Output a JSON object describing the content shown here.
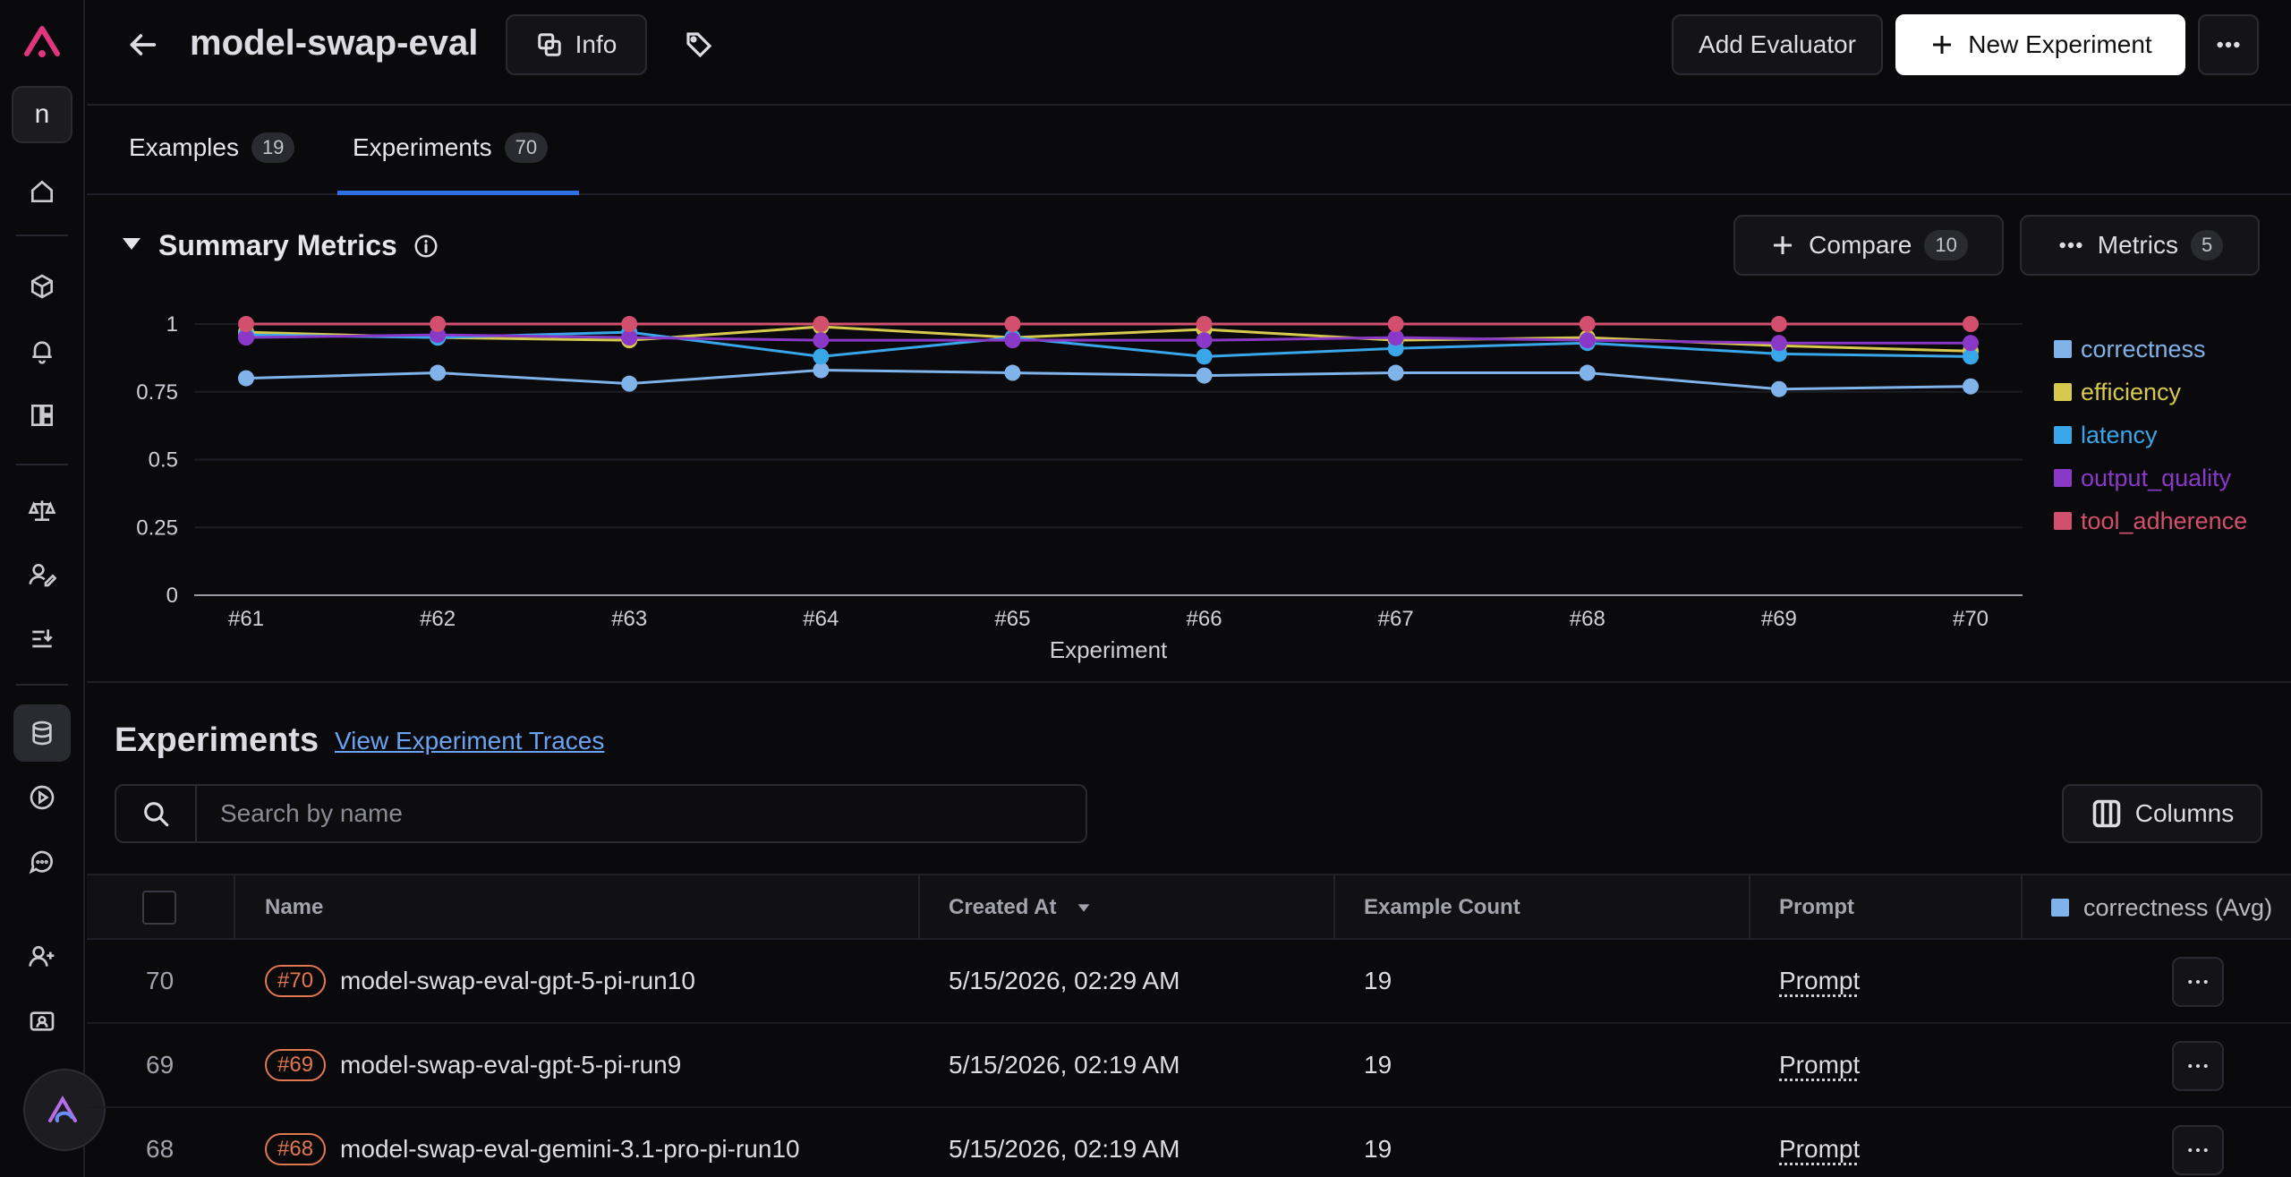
{
  "header": {
    "title": "model-swap-eval",
    "info_label": "Info",
    "add_evaluator_label": "Add Evaluator",
    "new_experiment_label": "New Experiment"
  },
  "rail": {
    "project_initial": "n"
  },
  "tabs": [
    {
      "label": "Examples",
      "count": "19"
    },
    {
      "label": "Experiments",
      "count": "70"
    }
  ],
  "summary": {
    "title": "Summary Metrics",
    "compare_label": "Compare",
    "compare_count": "10",
    "metrics_label": "Metrics",
    "metrics_count": "5"
  },
  "chart_data": {
    "type": "line",
    "xlabel": "Experiment",
    "categories": [
      "#61",
      "#62",
      "#63",
      "#64",
      "#65",
      "#66",
      "#67",
      "#68",
      "#69",
      "#70"
    ],
    "ylim": [
      0,
      1
    ],
    "yticks": [
      "0",
      "0.25",
      "0.5",
      "0.75",
      "1"
    ],
    "grid": true,
    "legend_position": "right",
    "series": [
      {
        "name": "correctness",
        "color": "#7fb3ea",
        "values": [
          0.8,
          0.82,
          0.78,
          0.83,
          0.82,
          0.81,
          0.82,
          0.82,
          0.76,
          0.77
        ]
      },
      {
        "name": "efficiency",
        "color": "#d7c94b",
        "values": [
          0.97,
          0.95,
          0.94,
          0.99,
          0.95,
          0.98,
          0.94,
          0.95,
          0.92,
          0.9
        ]
      },
      {
        "name": "latency",
        "color": "#3aa6ea",
        "values": [
          0.96,
          0.95,
          0.97,
          0.88,
          0.95,
          0.88,
          0.91,
          0.93,
          0.89,
          0.88
        ]
      },
      {
        "name": "output_quality",
        "color": "#8a38c8",
        "values": [
          0.95,
          0.96,
          0.95,
          0.94,
          0.94,
          0.94,
          0.95,
          0.94,
          0.93,
          0.93
        ]
      },
      {
        "name": "tool_adherence",
        "color": "#d2506e",
        "values": [
          1,
          1,
          1,
          1,
          1,
          1,
          1,
          1,
          1,
          1
        ]
      }
    ]
  },
  "experiments": {
    "title": "Experiments",
    "traces_link": "View Experiment Traces",
    "search_placeholder": "Search by name",
    "columns_label": "Columns",
    "headers": {
      "name": "Name",
      "created_at": "Created At",
      "example_count": "Example Count",
      "prompt": "Prompt",
      "metric": "correctness (Avg)"
    },
    "rows": [
      {
        "id": "70",
        "tag": "#70",
        "name": "model-swap-eval-gpt-5-pi-run10",
        "created": "5/15/2026, 02:29 AM",
        "count": "19",
        "prompt": "Prompt"
      },
      {
        "id": "69",
        "tag": "#69",
        "name": "model-swap-eval-gpt-5-pi-run9",
        "created": "5/15/2026, 02:19 AM",
        "count": "19",
        "prompt": "Prompt"
      },
      {
        "id": "68",
        "tag": "#68",
        "name": "model-swap-eval-gemini-3.1-pro-pi-run10",
        "created": "5/15/2026, 02:19 AM",
        "count": "19",
        "prompt": "Prompt"
      }
    ]
  }
}
